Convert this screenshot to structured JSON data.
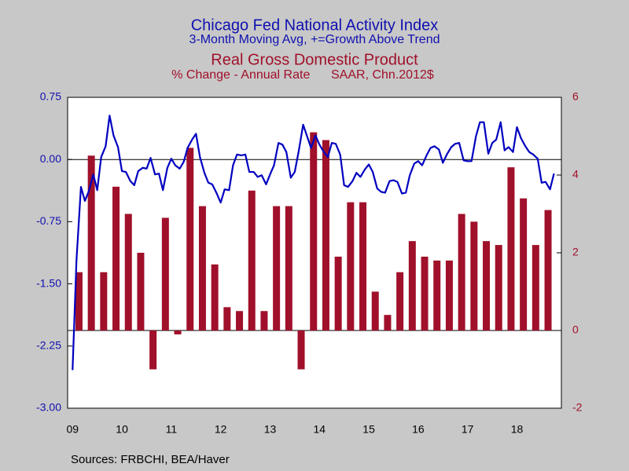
{
  "chart_data": {
    "type": "combo",
    "title": "Chicago Fed National Activity Index",
    "subtitle": "3-Month Moving Avg, +=Growth Above Trend",
    "title2": "Real Gross Domestic Product",
    "subtitle2": "% Change - Annual Rate      SAAR, Chn.2012$",
    "source": "Sources:  FRBCHI, BEA/Haver",
    "xlim": [
      2009.4,
      2019.4
    ],
    "xticks": [
      {
        "value": 2009.5,
        "label": "09"
      },
      {
        "value": 2010.5,
        "label": "10"
      },
      {
        "value": 2011.5,
        "label": "11"
      },
      {
        "value": 2012.5,
        "label": "12"
      },
      {
        "value": 2013.5,
        "label": "13"
      },
      {
        "value": 2014.5,
        "label": "14"
      },
      {
        "value": 2015.5,
        "label": "15"
      },
      {
        "value": 2016.5,
        "label": "16"
      },
      {
        "value": 2017.5,
        "label": "17"
      },
      {
        "value": 2018.5,
        "label": "18"
      }
    ],
    "ylim": [
      -3,
      0.75
    ],
    "yticks": [
      {
        "value": -3,
        "label": "-3.00"
      },
      {
        "value": -2.25,
        "label": "-2.25"
      },
      {
        "value": -1.5,
        "label": "-1.50"
      },
      {
        "value": -0.75,
        "label": "-0.75"
      },
      {
        "value": 0,
        "label": "0.00"
      },
      {
        "value": 0.75,
        "label": "0.75"
      }
    ],
    "y2lim": [
      -2,
      6
    ],
    "y2ticks": [
      -2,
      0,
      2,
      4,
      6
    ],
    "series": [
      {
        "type": "bar",
        "axis": "y2",
        "color": "#a0102a",
        "x": [
          2009.63,
          2009.88,
          2010.13,
          2010.38,
          2010.63,
          2010.88,
          2011.13,
          2011.38,
          2011.63,
          2011.88,
          2012.13,
          2012.38,
          2012.63,
          2012.88,
          2013.13,
          2013.38,
          2013.63,
          2013.88,
          2014.13,
          2014.38,
          2014.63,
          2014.88,
          2015.13,
          2015.38,
          2015.63,
          2015.88,
          2016.13,
          2016.38,
          2016.63,
          2016.88,
          2017.13,
          2017.38,
          2017.63,
          2017.88,
          2018.13,
          2018.38,
          2018.63,
          2018.88,
          2019.13
        ],
        "values": [
          1.5,
          4.5,
          1.5,
          3.7,
          3.0,
          2.0,
          -1.0,
          2.9,
          -0.1,
          4.7,
          3.2,
          1.7,
          0.6,
          0.5,
          3.6,
          0.5,
          3.2,
          3.2,
          -1.0,
          5.1,
          4.9,
          1.9,
          3.3,
          3.3,
          1.0,
          0.4,
          1.5,
          2.3,
          1.9,
          1.8,
          1.8,
          3.0,
          2.8,
          2.3,
          2.2,
          4.2,
          3.4,
          2.2,
          3.1
        ]
      },
      {
        "type": "line",
        "axis": "y",
        "color": "#0000c0",
        "x": [
          2009.5,
          2009.58,
          2009.67,
          2009.75,
          2009.83,
          2009.92,
          2010,
          2010.08,
          2010.17,
          2010.25,
          2010.33,
          2010.42,
          2010.5,
          2010.58,
          2010.67,
          2010.75,
          2010.83,
          2010.92,
          2011,
          2011.08,
          2011.17,
          2011.25,
          2011.33,
          2011.42,
          2011.5,
          2011.58,
          2011.67,
          2011.75,
          2011.83,
          2011.92,
          2012,
          2012.08,
          2012.17,
          2012.25,
          2012.33,
          2012.42,
          2012.5,
          2012.58,
          2012.67,
          2012.75,
          2012.83,
          2012.92,
          2013,
          2013.08,
          2013.17,
          2013.25,
          2013.33,
          2013.42,
          2013.5,
          2013.58,
          2013.67,
          2013.75,
          2013.83,
          2013.92,
          2014,
          2014.08,
          2014.17,
          2014.25,
          2014.33,
          2014.42,
          2014.5,
          2014.58,
          2014.67,
          2014.75,
          2014.83,
          2014.92,
          2015,
          2015.08,
          2015.17,
          2015.25,
          2015.33,
          2015.42,
          2015.5,
          2015.58,
          2015.67,
          2015.75,
          2015.83,
          2015.92,
          2016,
          2016.08,
          2016.17,
          2016.25,
          2016.33,
          2016.42,
          2016.5,
          2016.58,
          2016.67,
          2016.75,
          2016.83,
          2016.92,
          2017,
          2017.08,
          2017.17,
          2017.25,
          2017.33,
          2017.42,
          2017.5,
          2017.58,
          2017.67,
          2017.75,
          2017.83,
          2017.92,
          2018,
          2018.08,
          2018.17,
          2018.25,
          2018.33,
          2018.42,
          2018.5,
          2018.58,
          2018.67,
          2018.75,
          2018.83,
          2018.92,
          2019,
          2019.08,
          2019.17,
          2019.25
        ],
        "values": [
          -2.54,
          -1.21,
          -0.33,
          -0.5,
          -0.38,
          -0.18,
          -0.37,
          0.03,
          0.16,
          0.53,
          0.29,
          0.15,
          -0.14,
          -0.15,
          -0.26,
          -0.31,
          -0.14,
          -0.1,
          -0.11,
          0.02,
          -0.18,
          -0.17,
          -0.37,
          -0.1,
          0.01,
          -0.07,
          -0.11,
          -0.03,
          0.14,
          0.24,
          0.31,
          0.03,
          -0.16,
          -0.28,
          -0.3,
          -0.41,
          -0.52,
          -0.36,
          -0.37,
          -0.07,
          0.06,
          0.05,
          0.06,
          -0.15,
          -0.15,
          -0.21,
          -0.19,
          -0.3,
          -0.18,
          -0.07,
          0.2,
          0.18,
          0.09,
          -0.22,
          -0.15,
          0.1,
          0.42,
          0.28,
          0.14,
          0.29,
          0.18,
          0.1,
          0.03,
          0.2,
          0.19,
          0.06,
          -0.31,
          -0.33,
          -0.26,
          -0.16,
          -0.21,
          -0.12,
          -0.06,
          -0.15,
          -0.35,
          -0.39,
          -0.4,
          -0.26,
          -0.25,
          -0.27,
          -0.41,
          -0.4,
          -0.19,
          -0.05,
          -0.02,
          -0.07,
          0.05,
          0.14,
          0.16,
          0.12,
          -0.04,
          0.06,
          0.15,
          0.19,
          0.2,
          -0.01,
          -0.02,
          -0.02,
          0.28,
          0.45,
          0.45,
          0.07,
          0.2,
          0.24,
          0.45,
          0.11,
          0.15,
          0.09,
          0.39,
          0.26,
          0.16,
          0.09,
          0.06,
          0.01,
          -0.28,
          -0.27,
          -0.36,
          -0.17
        ]
      }
    ]
  }
}
